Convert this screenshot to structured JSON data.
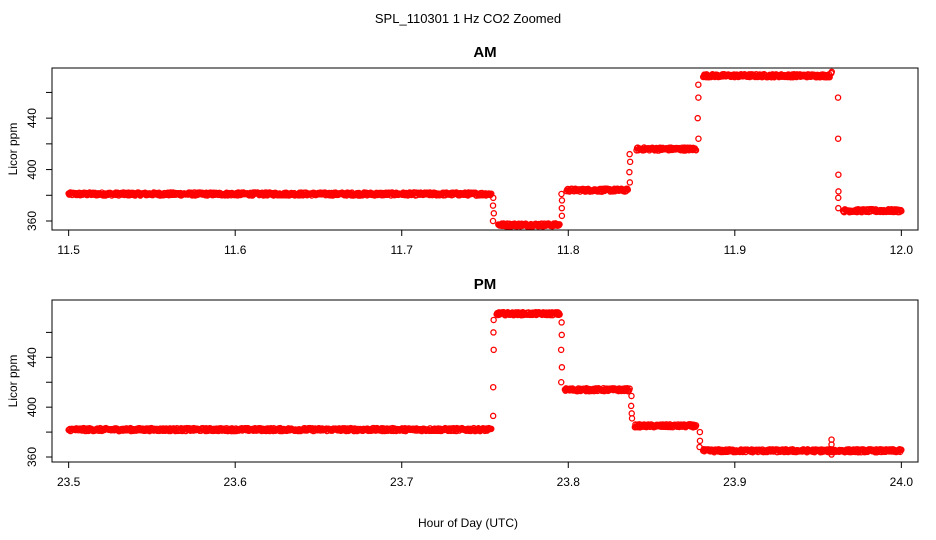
{
  "suptitle": "SPL_110301  1 Hz CO2 Zoomed",
  "chart_data": [
    {
      "type": "scatter",
      "title": "AM",
      "xlabel": "",
      "ylabel": "Licor ppm",
      "xlim": [
        11.49,
        12.01
      ],
      "ylim": [
        353,
        479
      ],
      "xticks": [
        11.5,
        11.6,
        11.7,
        11.8,
        11.9,
        12.0
      ],
      "xtick_labels": [
        "11.5",
        "11.6",
        "11.7",
        "11.8",
        "11.9",
        "12.0"
      ],
      "yticks": [
        360,
        380,
        400,
        420,
        440,
        460
      ],
      "ytick_labels": [
        "360",
        "",
        "400",
        "",
        "440",
        ""
      ],
      "grid": false,
      "marker": "open-circle",
      "color": "#ff0000",
      "segments": [
        {
          "x": [
            11.5,
            11.754
          ],
          "y": 381
        },
        {
          "x": [
            11.758,
            11.795
          ],
          "y": 357
        },
        {
          "x": [
            11.799,
            11.836
          ],
          "y": 384
        },
        {
          "x": [
            11.841,
            11.877
          ],
          "y": 416
        },
        {
          "x": [
            11.881,
            11.957
          ],
          "y": 473
        },
        {
          "x": [
            11.965,
            12.0
          ],
          "y": 368
        }
      ],
      "transitions": [
        {
          "x": 11.755,
          "y": [
            378,
            372,
            366,
            360
          ]
        },
        {
          "x": 11.796,
          "y": [
            364,
            370,
            376,
            381
          ]
        },
        {
          "x": 11.837,
          "y": [
            390,
            398,
            406,
            412
          ]
        },
        {
          "x": 11.878,
          "y": [
            424,
            440,
            456,
            466
          ]
        },
        {
          "x": 11.958,
          "y": [
            476,
            475
          ]
        },
        {
          "x": 11.962,
          "y": [
            456,
            424,
            396,
            383,
            378,
            370
          ]
        }
      ]
    },
    {
      "type": "scatter",
      "title": "PM",
      "xlabel": "Hour of Day (UTC)",
      "ylabel": "Licor ppm",
      "xlim": [
        23.49,
        24.01
      ],
      "ylim": [
        356,
        486
      ],
      "xticks": [
        23.5,
        23.6,
        23.7,
        23.8,
        23.9,
        24.0
      ],
      "xtick_labels": [
        "23.5",
        "23.6",
        "23.7",
        "23.8",
        "23.9",
        "24.0"
      ],
      "yticks": [
        360,
        380,
        400,
        420,
        440,
        460
      ],
      "ytick_labels": [
        "360",
        "",
        "400",
        "",
        "440",
        ""
      ],
      "grid": false,
      "marker": "open-circle",
      "color": "#ff0000",
      "segments": [
        {
          "x": [
            23.5,
            23.754
          ],
          "y": 382
        },
        {
          "x": [
            23.757,
            23.795
          ],
          "y": 475
        },
        {
          "x": [
            23.798,
            23.837
          ],
          "y": 414
        },
        {
          "x": [
            23.84,
            23.877
          ],
          "y": 385
        },
        {
          "x": [
            23.881,
            24.0
          ],
          "y": 365
        }
      ],
      "transitions": [
        {
          "x": 23.755,
          "y": [
            393,
            416,
            446,
            460,
            470
          ]
        },
        {
          "x": 23.796,
          "y": [
            468,
            458,
            446,
            432,
            420
          ]
        },
        {
          "x": 23.838,
          "y": [
            409,
            401,
            395,
            391
          ]
        },
        {
          "x": 23.879,
          "y": [
            380,
            373,
            368
          ]
        },
        {
          "x": 23.958,
          "y": [
            374,
            370,
            362
          ]
        }
      ]
    }
  ]
}
